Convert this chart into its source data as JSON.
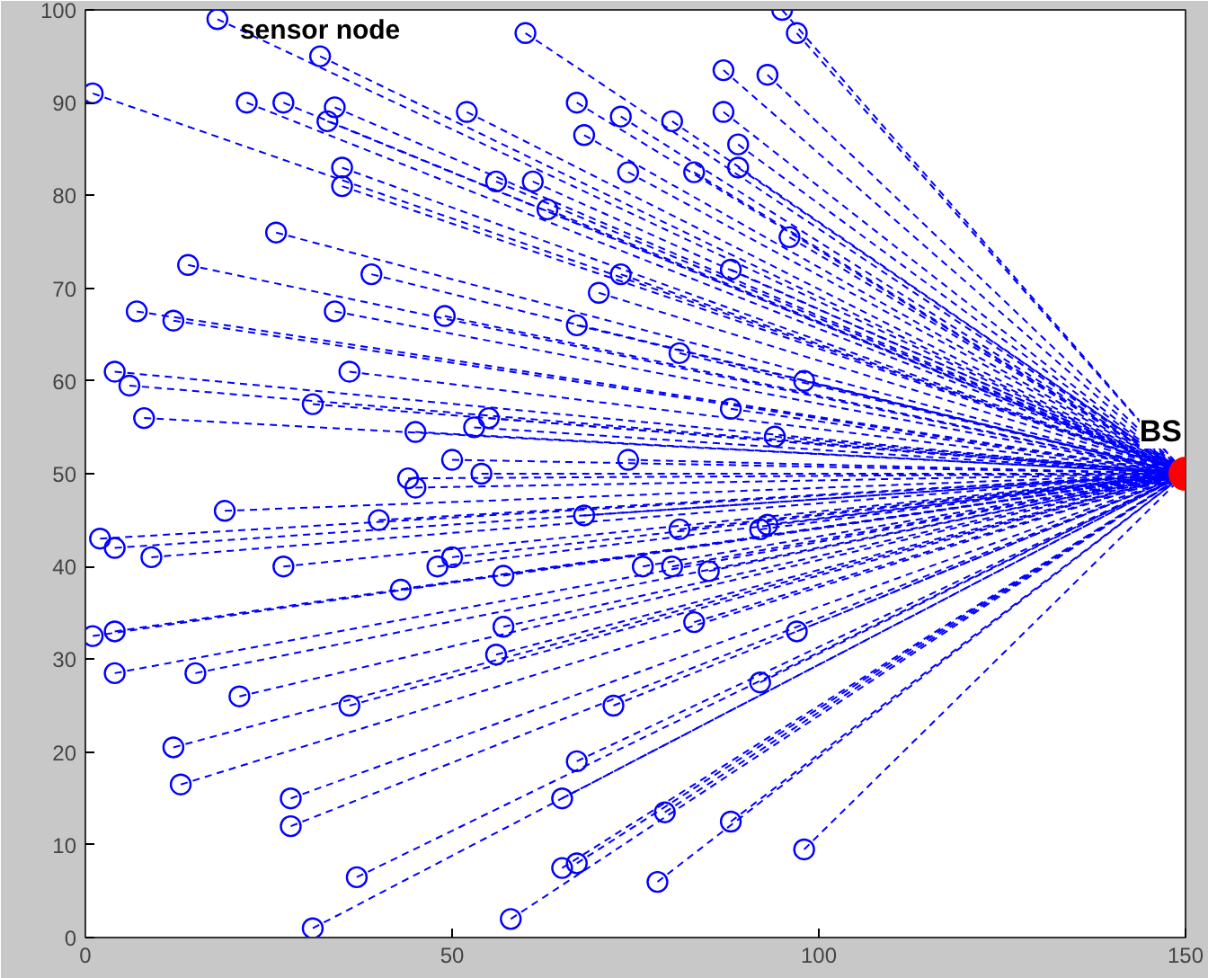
{
  "chart_data": {
    "type": "scatter",
    "xlim": [
      0,
      150
    ],
    "ylim": [
      0,
      100
    ],
    "xticks": [
      0,
      50,
      100,
      150
    ],
    "yticks": [
      0,
      10,
      20,
      30,
      40,
      50,
      60,
      70,
      80,
      90,
      100
    ],
    "grid": false,
    "marker": "circle",
    "line_style": "dashed",
    "annotations": [
      {
        "text": "sensor node",
        "x": 32,
        "y": 95
      },
      {
        "text": "BS",
        "x": 150,
        "y": 50
      }
    ],
    "series": [
      {
        "color": "#0000ff",
        "x": [
          18,
          1,
          32,
          22,
          27,
          33,
          34,
          35,
          35,
          60,
          52,
          67,
          68,
          73,
          80,
          87,
          87,
          89,
          89,
          83,
          56,
          61,
          63,
          74,
          95,
          97,
          93,
          96,
          88,
          81,
          88,
          98,
          94,
          26,
          14,
          39,
          49,
          34,
          67,
          70,
          73,
          7,
          12,
          4,
          6,
          8,
          31,
          36,
          45,
          50,
          53,
          55,
          54,
          74,
          44,
          45,
          2,
          4,
          9,
          19,
          27,
          40,
          43,
          48,
          50,
          57,
          68,
          76,
          80,
          81,
          83,
          85,
          92,
          93,
          97,
          92,
          1,
          4,
          4,
          15,
          21,
          36,
          56,
          57,
          72,
          12,
          13,
          28,
          28,
          37,
          31,
          58,
          65,
          67,
          65,
          67,
          79,
          78,
          88,
          98
        ],
        "values": [
          99,
          91,
          95,
          90,
          90,
          88,
          89.5,
          83,
          81,
          97.5,
          89,
          90,
          86.5,
          88.5,
          88,
          93.5,
          89,
          85.5,
          83,
          82.5,
          81.5,
          81.5,
          78.5,
          82.5,
          100,
          97.5,
          93,
          75.5,
          72,
          63,
          57,
          60,
          54,
          76,
          72.5,
          71.5,
          67,
          67.5,
          66,
          69.5,
          71.5,
          67.5,
          66.5,
          61,
          59.5,
          56,
          57.5,
          61,
          54.5,
          51.5,
          55,
          56,
          50,
          51.5,
          49.5,
          48.5,
          43,
          42,
          41,
          46,
          40,
          45,
          37.5,
          40,
          41,
          39,
          45.5,
          40,
          40,
          44,
          34,
          39.5,
          44,
          44.5,
          33,
          27.5,
          32.5,
          33,
          28.5,
          28.5,
          26,
          25,
          30.5,
          33.5,
          25,
          20.5,
          16.5,
          15,
          12,
          6.5,
          1,
          2,
          7.5,
          8,
          15,
          19,
          13.5,
          6,
          12.5,
          9.5
        ]
      },
      {
        "color": "#ff0000",
        "x": [
          150
        ],
        "values": [
          50
        ]
      }
    ]
  }
}
